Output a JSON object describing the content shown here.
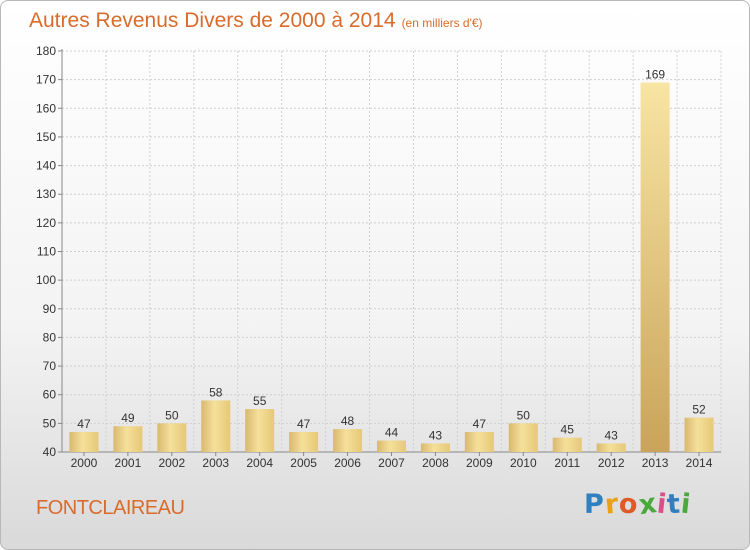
{
  "header": {
    "title": "Autres Revenus Divers de 2000 à 2014",
    "subtitle": "(en milliers d'€)"
  },
  "footer": {
    "place": "FONTCLAIREAU",
    "logo_letters": [
      "P",
      "r",
      "o",
      "x",
      "i",
      "t",
      "i"
    ],
    "logo_colors": [
      "#2f7fc1",
      "#e8a21a",
      "#e05a28",
      "#4aa83c",
      "#d94f8a",
      "#2f7fc1",
      "#4aa83c"
    ]
  },
  "colors": {
    "title": "#d96b2b",
    "bar_light": "#f7e6a6",
    "bar_dark": "#d4b066",
    "bar_highlight": "#c9a45a",
    "grid": "#cfcfcf",
    "axis": "#888888"
  },
  "chart_data": {
    "type": "bar",
    "categories": [
      "2000",
      "2001",
      "2002",
      "2003",
      "2004",
      "2005",
      "2006",
      "2007",
      "2008",
      "2009",
      "2010",
      "2011",
      "2012",
      "2013",
      "2014"
    ],
    "values": [
      47,
      49,
      50,
      58,
      55,
      47,
      48,
      44,
      43,
      47,
      50,
      45,
      43,
      169,
      52
    ],
    "data_labels": [
      "47",
      "49",
      "50",
      "58",
      "55",
      "47",
      "48",
      "44",
      "43",
      "47",
      "50",
      "45",
      "43",
      "169",
      "52"
    ],
    "ylim": [
      40,
      180
    ],
    "yticks": [
      40,
      50,
      60,
      70,
      80,
      90,
      100,
      110,
      120,
      130,
      140,
      150,
      160,
      170,
      180
    ],
    "title": "Autres Revenus Divers de 2000 à 2014",
    "xlabel": "",
    "ylabel": "",
    "grid": true
  }
}
